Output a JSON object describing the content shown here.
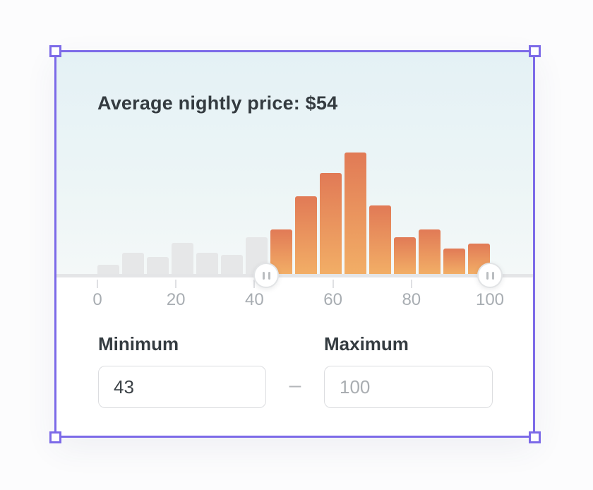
{
  "selection": {
    "accent_color": "#7c6ae8",
    "handle_fill": "#ffffff"
  },
  "chart_data": {
    "type": "bar",
    "subtype": "price-histogram-with-range-slider",
    "title": "Average nightly price: $54",
    "bins": {
      "start": 0,
      "end": 100,
      "count": 16
    },
    "values": [
      13,
      30,
      24,
      44,
      30,
      27,
      52,
      63,
      110,
      143,
      172,
      97,
      52,
      63,
      36,
      43
    ],
    "y_note": "relative bar heights, no y-axis shown",
    "x_ticks": [
      0,
      20,
      40,
      60,
      80,
      100
    ],
    "x_tick_labels": [
      "0",
      "20",
      "40",
      "60",
      "80",
      "100"
    ],
    "selected_range": {
      "min": 43,
      "max": 100
    },
    "legend": "none",
    "grid": "off",
    "colors": {
      "in_range_top": "#e17a56",
      "in_range_bottom": "#f2ae66",
      "out_of_range": "#e6e7e8",
      "track": "#e4e5e7",
      "tick": "#dfe0e3",
      "tick_label": "#a8adb2",
      "panel_gradient_top": "#e4f1f5",
      "panel_gradient_bottom": "#f4f8f8"
    }
  },
  "icons": {
    "slider_handle": "pause-grip-icon"
  },
  "fields": {
    "min": {
      "label": "Minimum",
      "value": "43"
    },
    "separator": "–",
    "max": {
      "label": "Maximum",
      "value": "",
      "placeholder": "100"
    }
  }
}
